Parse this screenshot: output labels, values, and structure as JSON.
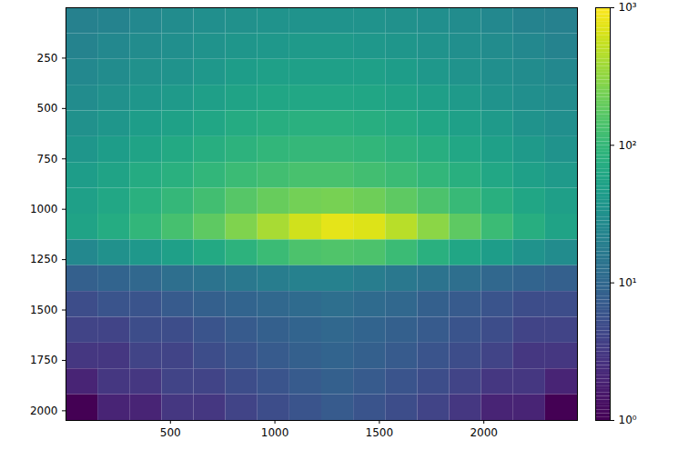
{
  "chart_data": {
    "type": "heatmap",
    "color": "viridis",
    "xlim": [
      0,
      2448
    ],
    "xticks": [
      500,
      1000,
      1500,
      2000
    ],
    "ylim": [
      2048,
      0
    ],
    "yticks": [
      250,
      500,
      750,
      1000,
      1250,
      1500,
      1750,
      2000
    ],
    "x_bins": [
      0,
      153,
      306,
      459,
      612,
      765,
      918,
      1071,
      1224,
      1377,
      1530,
      1683,
      1836,
      1989,
      2142,
      2295,
      2448
    ],
    "y_bins": [
      0,
      128,
      256,
      384,
      512,
      640,
      768,
      896,
      1024,
      1152,
      1280,
      1408,
      1536,
      1664,
      1792,
      1920,
      2048
    ],
    "cells": [
      [
        20,
        22,
        25,
        28,
        30,
        32,
        35,
        35,
        35,
        35,
        32,
        30,
        28,
        25,
        22,
        20
      ],
      [
        22,
        25,
        28,
        30,
        35,
        38,
        40,
        42,
        42,
        40,
        38,
        35,
        30,
        28,
        25,
        22
      ],
      [
        25,
        28,
        32,
        35,
        40,
        45,
        50,
        50,
        50,
        50,
        45,
        40,
        35,
        30,
        28,
        25
      ],
      [
        28,
        32,
        38,
        42,
        48,
        55,
        60,
        62,
        62,
        60,
        55,
        48,
        42,
        35,
        30,
        28
      ],
      [
        32,
        38,
        45,
        52,
        60,
        68,
        75,
        80,
        80,
        75,
        68,
        60,
        50,
        42,
        35,
        30
      ],
      [
        38,
        45,
        55,
        65,
        75,
        85,
        95,
        100,
        100,
        95,
        85,
        75,
        62,
        50,
        42,
        35
      ],
      [
        45,
        55,
        68,
        80,
        95,
        110,
        125,
        135,
        135,
        125,
        110,
        95,
        78,
        62,
        50,
        42
      ],
      [
        50,
        62,
        80,
        100,
        125,
        160,
        200,
        230,
        240,
        220,
        180,
        140,
        105,
        78,
        60,
        48
      ],
      [
        55,
        70,
        95,
        130,
        180,
        260,
        400,
        600,
        750,
        700,
        480,
        300,
        180,
        110,
        75,
        55
      ],
      [
        25,
        32,
        40,
        50,
        65,
        85,
        110,
        140,
        150,
        140,
        110,
        80,
        60,
        45,
        35,
        28
      ],
      [
        8,
        9,
        10,
        12,
        14,
        16,
        18,
        20,
        20,
        18,
        16,
        14,
        12,
        10,
        9,
        8
      ],
      [
        5,
        6,
        6,
        7,
        8,
        9,
        10,
        11,
        12,
        11,
        10,
        8,
        7,
        6,
        5,
        5
      ],
      [
        4,
        4,
        5,
        5,
        6,
        7,
        8,
        9,
        10,
        9,
        8,
        7,
        6,
        5,
        4,
        4
      ],
      [
        3,
        3,
        4,
        4,
        5,
        6,
        7,
        8,
        9,
        8,
        7,
        6,
        5,
        4,
        3,
        3
      ],
      [
        2,
        3,
        3,
        4,
        4,
        5,
        6,
        7,
        8,
        7,
        6,
        5,
        4,
        3,
        3,
        2
      ],
      [
        1,
        2,
        2,
        3,
        3,
        4,
        5,
        6,
        7,
        6,
        5,
        4,
        3,
        2,
        2,
        1
      ]
    ],
    "colorbar": {
      "range": [
        1,
        1000
      ],
      "log": true,
      "ticks": [
        {
          "value": 1,
          "label": "10⁰"
        },
        {
          "value": 10,
          "label": "10¹"
        },
        {
          "value": 100,
          "label": "10²"
        },
        {
          "value": 1000,
          "label": "10³"
        }
      ]
    }
  }
}
